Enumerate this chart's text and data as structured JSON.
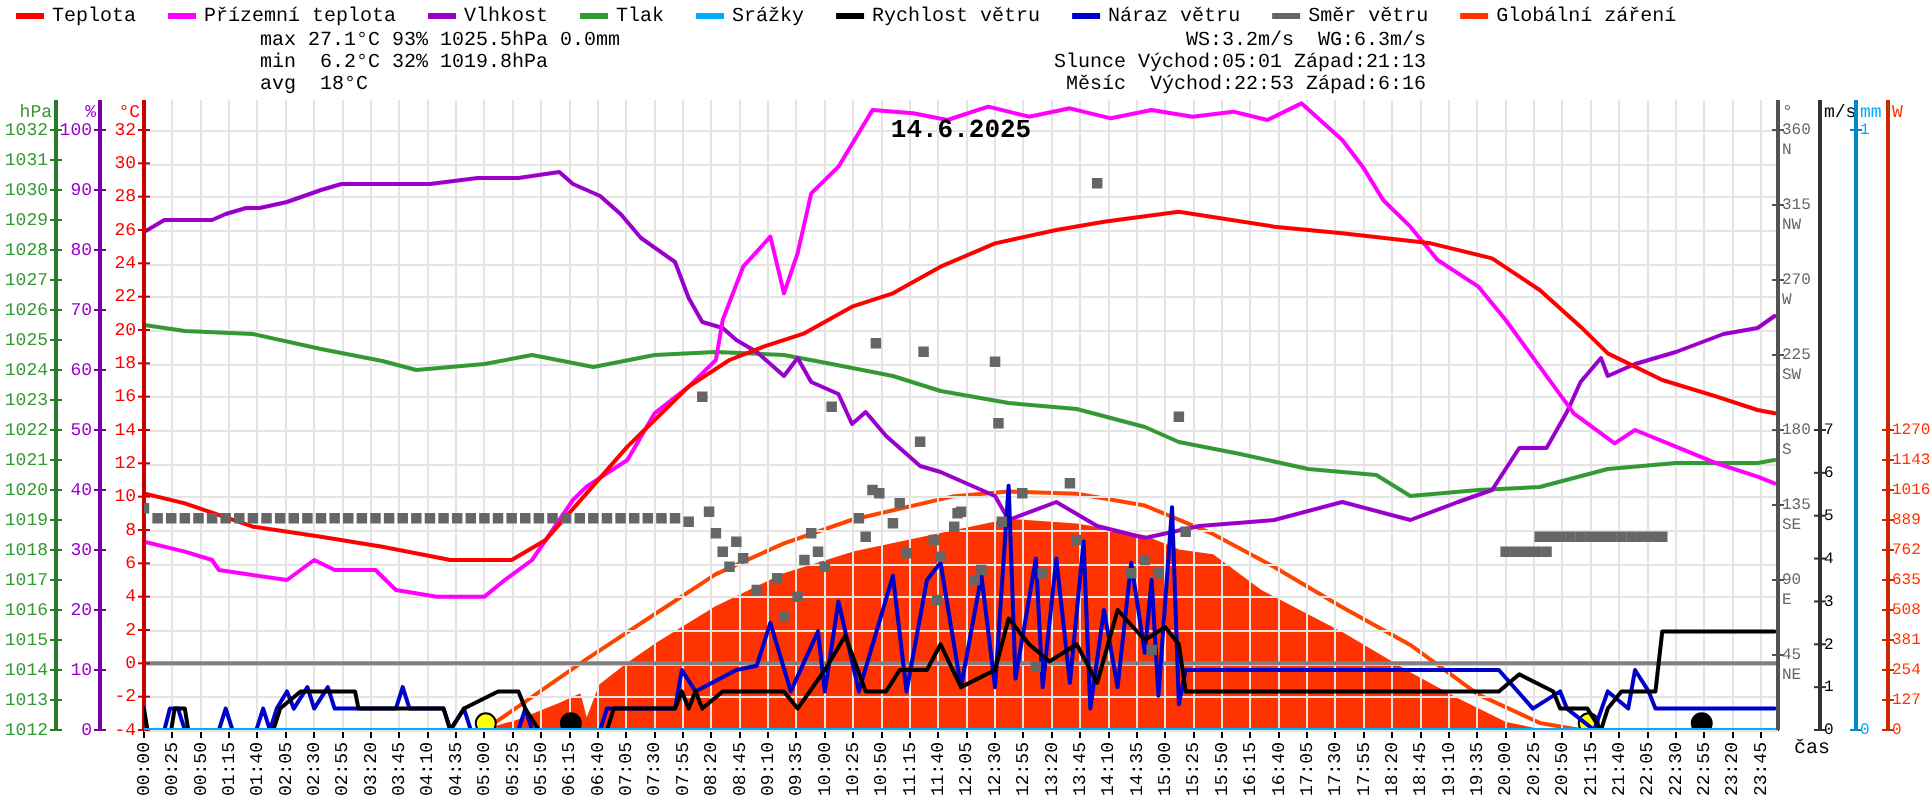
{
  "chart_data": [
    {
      "type": "line",
      "title": "14.6.2025",
      "xlabel": "čas",
      "ylabel": "°C",
      "y2label": "hPa",
      "y3label": "%",
      "annotations": [
        "max 27.1°C 93% 1025.5hPa 0.0mm",
        "min  6.2°C 32% 1019.8hPa",
        "avg  18°C",
        "WS:3.2m/s  WG:6.3m/s",
        "Slunce Východ:05:01 Západ:21:13",
        "Měsíc  Východ:22:53 Západ:6:16"
      ],
      "xlim": [
        0,
        24
      ],
      "xticks": [
        {
          "value": 0,
          "label": "00:00"
        },
        {
          "value": 0.4167,
          "label": "00:25"
        },
        {
          "value": 0.8333,
          "label": "00:50"
        },
        {
          "value": 1.25,
          "label": "01:15"
        },
        {
          "value": 1.6667,
          "label": "01:40"
        },
        {
          "value": 2.0833,
          "label": "02:05"
        },
        {
          "value": 2.5,
          "label": "02:30"
        },
        {
          "value": 2.9167,
          "label": "02:55"
        },
        {
          "value": 3.3333,
          "label": "03:20"
        },
        {
          "value": 3.75,
          "label": "03:45"
        },
        {
          "value": 4.1667,
          "label": "04:10"
        },
        {
          "value": 4.5833,
          "label": "04:35"
        },
        {
          "value": 5,
          "label": "05:00"
        },
        {
          "value": 5.4167,
          "label": "05:25"
        },
        {
          "value": 5.8333,
          "label": "05:50"
        },
        {
          "value": 6.25,
          "label": "06:15"
        },
        {
          "value": 6.6667,
          "label": "06:40"
        },
        {
          "value": 7.0833,
          "label": "07:05"
        },
        {
          "value": 7.5,
          "label": "07:30"
        },
        {
          "value": 7.9167,
          "label": "07:55"
        },
        {
          "value": 8.3333,
          "label": "08:20"
        },
        {
          "value": 8.75,
          "label": "08:45"
        },
        {
          "value": 9.1667,
          "label": "09:10"
        },
        {
          "value": 9.5833,
          "label": "09:35"
        },
        {
          "value": 10,
          "label": "10:00"
        },
        {
          "value": 10.4167,
          "label": "10:25"
        },
        {
          "value": 10.8333,
          "label": "10:50"
        },
        {
          "value": 11.25,
          "label": "11:15"
        },
        {
          "value": 11.6667,
          "label": "11:40"
        },
        {
          "value": 12.0833,
          "label": "12:05"
        },
        {
          "value": 12.5,
          "label": "12:30"
        },
        {
          "value": 12.9167,
          "label": "12:55"
        },
        {
          "value": 13.3333,
          "label": "13:20"
        },
        {
          "value": 13.75,
          "label": "13:45"
        },
        {
          "value": 14.1667,
          "label": "14:10"
        },
        {
          "value": 14.5833,
          "label": "14:35"
        },
        {
          "value": 15,
          "label": "15:00"
        },
        {
          "value": 15.4167,
          "label": "15:25"
        },
        {
          "value": 15.8333,
          "label": "15:50"
        },
        {
          "value": 16.25,
          "label": "16:15"
        },
        {
          "value": 16.6667,
          "label": "16:40"
        },
        {
          "value": 17.0833,
          "label": "17:05"
        },
        {
          "value": 17.5,
          "label": "17:30"
        },
        {
          "value": 17.9167,
          "label": "17:55"
        },
        {
          "value": 18.3333,
          "label": "18:20"
        },
        {
          "value": 18.75,
          "label": "18:45"
        },
        {
          "value": 19.1667,
          "label": "19:10"
        },
        {
          "value": 19.5833,
          "label": "19:35"
        },
        {
          "value": 20,
          "label": "20:00"
        },
        {
          "value": 20.4167,
          "label": "20:25"
        },
        {
          "value": 20.8333,
          "label": "20:50"
        },
        {
          "value": 21.25,
          "label": "21:15"
        },
        {
          "value": 21.6667,
          "label": "21:40"
        },
        {
          "value": 22.0833,
          "label": "22:05"
        },
        {
          "value": 22.5,
          "label": "22:30"
        },
        {
          "value": 22.9167,
          "label": "22:55"
        },
        {
          "value": 23.3333,
          "label": "23:20"
        },
        {
          "value": 23.75,
          "label": "23:45"
        }
      ],
      "ylim": [
        -4,
        33.8
      ],
      "yticks": [
        -4,
        -2,
        0,
        2,
        4,
        6,
        8,
        10,
        12,
        14,
        16,
        18,
        20,
        22,
        24,
        26,
        28,
        30,
        32
      ],
      "y2lim": [
        1012,
        1033
      ],
      "y2ticks": [
        1012,
        1013,
        1014,
        1015,
        1016,
        1017,
        1018,
        1019,
        1020,
        1021,
        1022,
        1023,
        1024,
        1025,
        1026,
        1027,
        1028,
        1029,
        1030,
        1031,
        1032
      ],
      "y3lim": [
        0,
        105
      ],
      "y3ticks": [
        0,
        10,
        20,
        30,
        40,
        50,
        60,
        70,
        80,
        90,
        100
      ],
      "grid": true,
      "legend": "top left",
      "marker": "none",
      "line_style": "solid",
      "ref_lines": [
        {
          "axis": "y",
          "value": 0,
          "color": "#808080"
        }
      ],
      "series": [
        {
          "name": "Teplota",
          "color": "#ff0000",
          "x": [
            0,
            0.6,
            1.6,
            2.6,
            3.5,
            4.5,
            5.4,
            5.9,
            6.5,
            7.1,
            7.5,
            8.0,
            8.6,
            9.1,
            9.7,
            10.4,
            11.0,
            11.7,
            12.5,
            13.4,
            14.1,
            15.2,
            16.6,
            17.6,
            18.9,
            19.8,
            20.5,
            21.1,
            21.5,
            22.3,
            23.1,
            23.7,
            23.95
          ],
          "values": [
            10.2,
            9.6,
            8.2,
            7.6,
            7.0,
            6.2,
            6.2,
            7.4,
            10.2,
            13.0,
            14.6,
            16.6,
            18.2,
            19.0,
            19.8,
            21.4,
            22.2,
            23.8,
            25.2,
            26.0,
            26.5,
            27.1,
            26.2,
            25.8,
            25.2,
            24.3,
            22.4,
            20.2,
            18.6,
            17.0,
            16.0,
            15.2,
            15.0
          ]
        },
        {
          "name": "Přízemní teplota",
          "color": "#ff00ff",
          "x": [
            0,
            0.6,
            1.0,
            1.1,
            2.1,
            2.5,
            2.8,
            3.4,
            3.7,
            4.3,
            5.0,
            5.3,
            5.7,
            6.3,
            6.5,
            7.1,
            7.5,
            8.0,
            8.4,
            8.5,
            8.8,
            9.2,
            9.4,
            9.6,
            9.8,
            10.2,
            10.7,
            11.3,
            11.8,
            12.4,
            13.0,
            13.6,
            14.2,
            14.8,
            15.4,
            16.0,
            16.5,
            17.0,
            17.6,
            17.9,
            18.2,
            18.6,
            19.0,
            19.6,
            20.0,
            20.5,
            21.0,
            21.6,
            21.9,
            22.5,
            23.1,
            23.7,
            23.95
          ],
          "values": [
            7.3,
            6.7,
            6.2,
            5.6,
            5.0,
            6.2,
            5.6,
            5.6,
            4.4,
            4.0,
            4.0,
            5.0,
            6.2,
            9.8,
            10.6,
            12.2,
            15.0,
            16.6,
            18.2,
            20.6,
            23.8,
            25.6,
            22.2,
            24.6,
            28.2,
            29.8,
            33.2,
            33.0,
            32.6,
            33.4,
            32.8,
            33.3,
            32.7,
            33.2,
            32.8,
            33.1,
            32.6,
            33.6,
            31.4,
            29.8,
            27.8,
            26.2,
            24.2,
            22.6,
            20.6,
            17.8,
            15.0,
            13.2,
            14.0,
            13.0,
            12.0,
            11.2,
            10.8
          ]
        },
        {
          "name": "Vlhkost",
          "color": "#9900cc",
          "axis": "y3",
          "x": [
            0,
            0.3,
            1.0,
            1.2,
            1.5,
            1.7,
            2.1,
            2.6,
            2.9,
            4.2,
            4.9,
            5.5,
            6.1,
            6.3,
            6.7,
            7.0,
            7.3,
            7.8,
            8.0,
            8.2,
            8.5,
            8.7,
            9.0,
            9.4,
            9.6,
            9.8,
            10.2,
            10.4,
            10.6,
            10.9,
            11.2,
            11.4,
            11.7,
            12.5,
            12.7,
            13.4,
            14.0,
            14.7,
            15.5,
            16.6,
            17.6,
            18.6,
            19.3,
            19.8,
            20.2,
            20.6,
            20.9,
            21.1,
            21.4,
            21.5,
            21.9,
            22.5,
            23.2,
            23.7,
            23.95
          ],
          "values": [
            83,
            85,
            85,
            86,
            87,
            87,
            88,
            90,
            91,
            91,
            92,
            92,
            93,
            91,
            89,
            86,
            82,
            78,
            72,
            68,
            67,
            65,
            63,
            59,
            62,
            58,
            56,
            51,
            53,
            49,
            46,
            44,
            43,
            39,
            35,
            38,
            34,
            32,
            34,
            35,
            38,
            35,
            38,
            40,
            47,
            47,
            53,
            58,
            62,
            59,
            61,
            63,
            66,
            67,
            69
          ]
        },
        {
          "name": "Tlak",
          "color": "#339933",
          "axis": "y2",
          "x": [
            0,
            0.6,
            1.6,
            2.6,
            3.5,
            4.0,
            5.0,
            5.7,
            6.6,
            7.5,
            8.4,
            9.4,
            10.1,
            11.0,
            11.7,
            12.7,
            13.7,
            14.7,
            15.2,
            16.1,
            17.1,
            18.1,
            18.6,
            19.6,
            20.5,
            21.5,
            22.5,
            23.7,
            23.95
          ],
          "values": [
            1025.5,
            1025.3,
            1025.2,
            1024.7,
            1024.3,
            1024.0,
            1024.2,
            1024.5,
            1024.1,
            1024.5,
            1024.6,
            1024.5,
            1024.2,
            1023.8,
            1023.3,
            1022.9,
            1022.7,
            1022.1,
            1021.6,
            1021.2,
            1020.7,
            1020.5,
            1019.8,
            1020.0,
            1020.1,
            1020.7,
            1020.9,
            1020.9,
            1021.0
          ]
        },
        {
          "color": "#ffff00",
          "type": "scatter",
          "marker": "circle",
          "x": [
            5.02,
            21.22
          ],
          "values": [
            -3.6,
            -3.6
          ]
        },
        {
          "color": "#000000",
          "type": "scatter",
          "marker": "circle",
          "x": [
            6.27,
            22.88
          ],
          "values": [
            -3.6,
            -3.6
          ]
        }
      ]
    },
    {
      "type": "line",
      "ylabel": "°",
      "y2label": "m/s",
      "y3label": "mm",
      "xlim": [
        0,
        24
      ],
      "tick_labels": "y",
      "legend": "top right",
      "marker": "none",
      "line_style": "solid",
      "ylim": [
        0,
        378
      ],
      "yticks": [
        {
          "value": 45,
          "label": "45 NE"
        },
        {
          "value": 90,
          "label": "90 E"
        },
        {
          "value": 135,
          "label": "135 SE"
        },
        {
          "value": 180,
          "label": "180 S"
        },
        {
          "value": 225,
          "label": "225 SW"
        },
        {
          "value": 270,
          "label": "270 W"
        },
        {
          "value": 315,
          "label": "315 NW"
        },
        {
          "value": 360,
          "label": "360 N"
        }
      ],
      "y2lim": [
        0,
        14.7
      ],
      "y2ticks": [
        0,
        1,
        2,
        3,
        4,
        5,
        6,
        7
      ],
      "y3lim": [
        0,
        1.05
      ],
      "y3ticks": [
        0,
        1
      ],
      "series": [
        {
          "name": "Srážky",
          "color": "#00aaff",
          "axis": "y3",
          "x": [
            0,
            23.95
          ],
          "values": [
            0,
            0
          ]
        },
        {
          "name": "Rychlost větru",
          "color": "#000000",
          "axis": "y2",
          "x": [
            0,
            0.05,
            0.4,
            0.45,
            0.6,
            0.65,
            1.9,
            2.0,
            2.3,
            3.1,
            3.15,
            4.4,
            4.5,
            4.7,
            5.2,
            5.5,
            5.6,
            5.8,
            6.8,
            6.9,
            7.8,
            7.9,
            8.0,
            8.1,
            8.2,
            8.5,
            9.4,
            9.6,
            10.0,
            10.3,
            10.6,
            10.9,
            11.1,
            11.5,
            11.7,
            12.0,
            12.5,
            12.7,
            13.0,
            13.3,
            13.7,
            14.0,
            14.3,
            14.7,
            15.0,
            15.2,
            15.3,
            19.9,
            20.2,
            20.7,
            20.8,
            21.2,
            21.4,
            21.5,
            21.7,
            22.2,
            22.3,
            23.95
          ],
          "values": [
            0.5,
            0,
            0,
            0.5,
            0.5,
            0,
            0,
            0.5,
            0.9,
            0.9,
            0.5,
            0.5,
            0,
            0.5,
            0.9,
            0.9,
            0.5,
            0,
            0,
            0.5,
            0.5,
            0.9,
            0.5,
            0.9,
            0.5,
            0.9,
            0.9,
            0.5,
            1.4,
            2.2,
            0.9,
            0.9,
            1.4,
            1.4,
            2.0,
            1.0,
            1.4,
            2.6,
            2.0,
            1.6,
            2.0,
            1.1,
            2.8,
            2.1,
            2.4,
            2.0,
            0.9,
            0.9,
            1.3,
            0.9,
            0.5,
            0.5,
            0,
            0.5,
            0.9,
            0.9,
            2.3,
            2.3
          ]
        },
        {
          "name": "Náraz větru",
          "color": "#0000cc",
          "axis": "y2",
          "x": [
            0,
            0.3,
            0.38,
            0.5,
            0.6,
            1.1,
            1.2,
            1.3,
            1.65,
            1.75,
            1.85,
            1.95,
            2.1,
            2.2,
            2.4,
            2.5,
            2.7,
            2.8,
            3.7,
            3.8,
            3.9,
            4.4,
            4.5,
            4.7,
            4.8,
            5.5,
            5.6,
            5.7,
            6.7,
            6.8,
            7.8,
            7.9,
            8.1,
            8.7,
            9.0,
            9.2,
            9.5,
            9.9,
            10.0,
            10.2,
            10.5,
            11.0,
            11.2,
            11.5,
            11.7,
            12.0,
            12.3,
            12.5,
            12.7,
            12.8,
            13.1,
            13.2,
            13.4,
            13.6,
            13.8,
            13.9,
            14.1,
            14.3,
            14.5,
            14.7,
            14.8,
            14.9,
            15.1,
            15.2,
            15.3,
            19.9,
            20.4,
            20.8,
            20.9,
            21.3,
            21.5,
            21.8,
            21.9,
            22.1,
            22.2,
            23.95
          ],
          "values": [
            0,
            0,
            0.5,
            0.5,
            0,
            0,
            0.5,
            0,
            0,
            0.5,
            0,
            0.5,
            0.9,
            0.5,
            1.0,
            0.5,
            1.0,
            0.5,
            0.5,
            1.0,
            0.5,
            0.5,
            0,
            0.5,
            0,
            0,
            0.5,
            0,
            0,
            0.5,
            0.5,
            1.4,
            0.9,
            1.4,
            1.5,
            2.5,
            0.9,
            2.3,
            0.9,
            3.0,
            0.9,
            3.6,
            0.9,
            3.5,
            3.9,
            1.0,
            3.6,
            1.0,
            5.7,
            1.2,
            4.0,
            1.0,
            4.0,
            1.1,
            4.4,
            0.5,
            2.8,
            1.0,
            3.9,
            1.8,
            3.5,
            0.8,
            5.2,
            0.6,
            1.4,
            1.4,
            0.5,
            0.9,
            0.5,
            0,
            0.9,
            0.5,
            1.4,
            0.9,
            0.5,
            0.5
          ]
        },
        {
          "name": "Směr větru",
          "color": "#666666",
          "type": "scatter",
          "marker": "square",
          "x": [
            0,
            0.2,
            0.4,
            0.6,
            0.8,
            1.0,
            1.2,
            1.4,
            1.6,
            1.8,
            2.0,
            2.2,
            2.4,
            2.6,
            2.8,
            3.0,
            3.2,
            3.4,
            3.6,
            3.8,
            4.0,
            4.2,
            4.4,
            4.6,
            4.8,
            5.0,
            5.2,
            5.4,
            5.6,
            5.8,
            6.0,
            6.2,
            6.4,
            6.6,
            6.8,
            7.0,
            7.2,
            7.4,
            7.6,
            7.8,
            8.0,
            8.2,
            8.3,
            8.4,
            8.5,
            8.6,
            8.7,
            8.8,
            9.0,
            9.3,
            9.4,
            9.6,
            9.7,
            9.8,
            9.9,
            10.0,
            10.1,
            10.5,
            10.6,
            10.7,
            10.75,
            10.8,
            11.0,
            11.1,
            11.2,
            11.4,
            11.45,
            11.6,
            11.65,
            11.7,
            11.9,
            11.95,
            12.0,
            12.2,
            12.3,
            12.5,
            12.55,
            12.6,
            12.9,
            13.1,
            13.2,
            13.6,
            13.7,
            14.0,
            14.5,
            14.7,
            14.8,
            14.9,
            15.2,
            15.3,
            20.0,
            20.15,
            20.3,
            20.45,
            20.5,
            20.6,
            20.65,
            20.8,
            20.95,
            21.1,
            21.25,
            21.4,
            21.55,
            21.7,
            21.85,
            22.0,
            22.15,
            22.3
          ],
          "values": [
            133,
            127,
            127,
            127,
            127,
            127,
            127,
            127,
            127,
            127,
            127,
            127,
            127,
            127,
            127,
            127,
            127,
            127,
            127,
            127,
            127,
            127,
            127,
            127,
            127,
            127,
            127,
            127,
            127,
            127,
            127,
            127,
            127,
            127,
            127,
            127,
            127,
            127,
            127,
            127,
            125,
            200,
            131,
            118,
            107,
            98,
            113,
            103,
            84,
            91,
            68,
            80,
            102,
            118,
            107,
            98,
            194,
            127,
            116,
            144,
            232,
            142,
            124,
            136,
            106,
            173,
            227,
            114,
            78,
            104,
            122,
            130,
            131,
            90,
            96,
            221,
            184,
            125,
            142,
            38,
            94,
            148,
            114,
            328,
            94,
            102,
            48,
            94,
            188,
            119,
            107,
            107,
            107,
            107,
            116,
            107,
            116,
            116,
            116,
            116,
            116,
            116,
            116,
            116,
            116,
            116,
            116,
            116
          ]
        }
      ]
    },
    {
      "type": "line",
      "ylabel": "W",
      "xlim": [
        0,
        24
      ],
      "tick_labels": "y",
      "legend": "top right",
      "marker": "none",
      "line_style": "solid",
      "ylim": [
        0,
        2667
      ],
      "yticks": [
        0,
        127,
        254,
        381,
        508,
        635,
        762,
        889,
        1016,
        1143,
        1270
      ],
      "series": [
        {
          "name": "Globální záření",
          "color": "#ff3300",
          "type": "area",
          "x": [
            5.0,
            5.5,
            6.1,
            6.4,
            6.5,
            6.7,
            7.1,
            7.5,
            8.4,
            9.4,
            10.4,
            11.7,
            12.7,
            13.7,
            14.7,
            15.2,
            15.7,
            16.4,
            17.6,
            18.6,
            19.3,
            20.0,
            20.5
          ],
          "values": [
            0,
            40,
            110,
            150,
            40,
            190,
            280,
            360,
            520,
            660,
            750,
            830,
            890,
            870,
            820,
            760,
            740,
            590,
            410,
            240,
            130,
            30,
            0
          ]
        },
        {
          "color": "#ff4400",
          "x": [
            5.0,
            5.5,
            6.5,
            7.5,
            8.4,
            9.4,
            10.4,
            11.9,
            12.7,
            13.7,
            14.7,
            15.7,
            16.6,
            17.6,
            18.6,
            19.6,
            20.5,
            21.1
          ],
          "values": [
            0,
            100,
            300,
            490,
            660,
            790,
            890,
            990,
            1010,
            1000,
            950,
            830,
            690,
            520,
            360,
            150,
            30,
            0
          ]
        }
      ]
    }
  ]
}
